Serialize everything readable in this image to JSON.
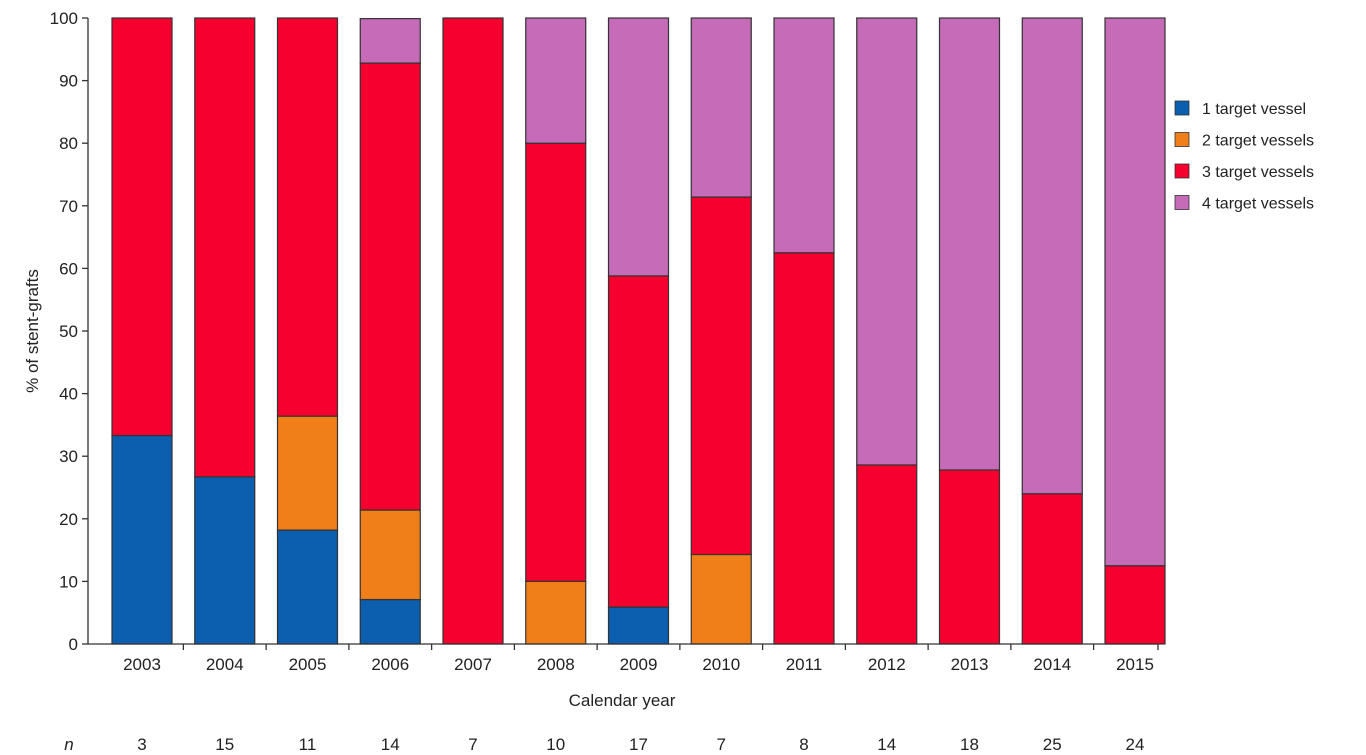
{
  "chart_data": {
    "type": "bar",
    "stacked": true,
    "title": "",
    "xlabel": "Calendar year",
    "ylabel": "% of stent-grafts",
    "ylim": [
      0,
      100
    ],
    "yticks": [
      0,
      10,
      20,
      30,
      40,
      50,
      60,
      70,
      80,
      90,
      100
    ],
    "categories": [
      "2003",
      "2004",
      "2005",
      "2006",
      "2007",
      "2008",
      "2009",
      "2010",
      "2011",
      "2012",
      "2013",
      "2014",
      "2015"
    ],
    "n_label": "n",
    "n": [
      "3",
      "15",
      "11",
      "14",
      "7",
      "10",
      "17",
      "7",
      "8",
      "14",
      "18",
      "25",
      "24"
    ],
    "series": [
      {
        "name": "1 target vessel",
        "color": "#0b5fae",
        "values": [
          33.3,
          26.7,
          18.2,
          7.1,
          0,
          0,
          5.9,
          0,
          0,
          0,
          0,
          0,
          0
        ]
      },
      {
        "name": "2 target vessels",
        "color": "#f07f1a",
        "values": [
          0,
          0,
          18.2,
          14.3,
          0,
          10.0,
          0,
          14.3,
          0,
          0,
          0,
          0,
          0
        ]
      },
      {
        "name": "3 target vessels",
        "color": "#f5002f",
        "values": [
          66.7,
          73.3,
          63.6,
          71.4,
          100,
          70.0,
          52.9,
          57.1,
          62.5,
          28.6,
          27.8,
          24.0,
          12.5
        ]
      },
      {
        "name": "4 target vessels",
        "color": "#c56bb8",
        "values": [
          0,
          0,
          0,
          7.1,
          0,
          20.0,
          41.2,
          28.6,
          37.5,
          71.4,
          72.2,
          76.0,
          87.5
        ]
      }
    ],
    "legend_position": "right",
    "grid": false
  }
}
